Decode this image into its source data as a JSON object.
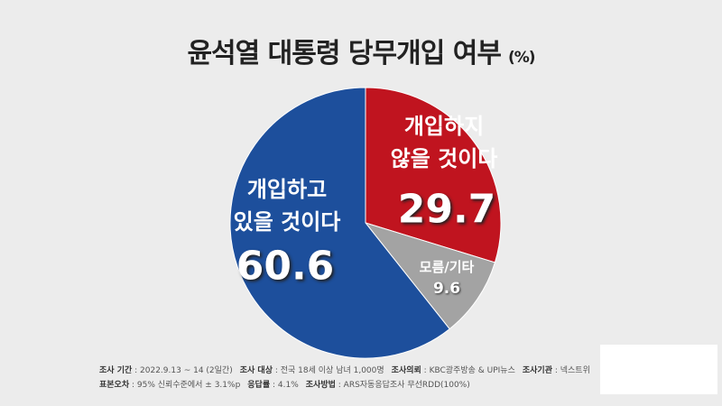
{
  "chart_data": {
    "type": "pie",
    "title": "윤석열 대통령 당무개입 여부",
    "unit": "(%)",
    "categories": [
      "개입하지\n않을 것이다",
      "모름/기타",
      "개입하고\n있을 것이다"
    ],
    "values": [
      29.7,
      9.6,
      60.6
    ],
    "colors": [
      "#c0141f",
      "#a3a3a3",
      "#1d4f9c"
    ],
    "notes": [
      [
        {
          "label": "조사 기간",
          "text": "2022.9.13 ~ 14 (2일간)"
        },
        {
          "label": "조사 대상",
          "text": "전국 18세 이상 남녀 1,000명"
        },
        {
          "label": "조사의뢰",
          "text": "KBC광주방송 & UPI뉴스"
        },
        {
          "label": "조사기관",
          "text": "넥스트위"
        }
      ],
      [
        {
          "label": "표본오차",
          "text": "95% 신뢰수준에서 ± 3.1%p"
        },
        {
          "label": "응답률",
          "text": "4.1%"
        },
        {
          "label": "조사방법",
          "text": "ARS자동응답조사 무선RDD(100%)"
        }
      ]
    ]
  }
}
